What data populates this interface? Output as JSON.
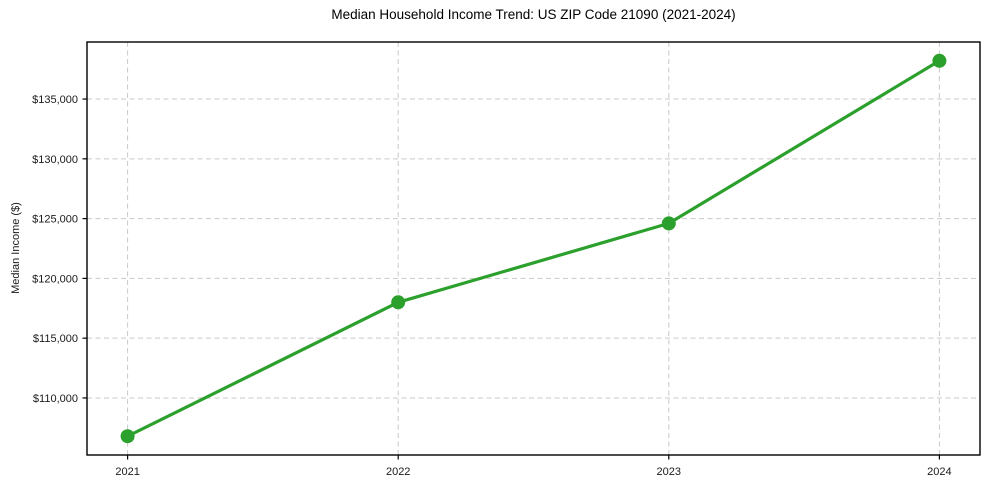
{
  "chart_data": {
    "type": "line",
    "title": "Median Household Income Trend: US ZIP Code 21090 (2021-2024)",
    "xlabel": "",
    "ylabel": "Median Income ($)",
    "x": [
      2021,
      2022,
      2023,
      2024
    ],
    "values": [
      106800,
      118000,
      124600,
      138200
    ],
    "xticks": [
      2021,
      2022,
      2023,
      2024
    ],
    "xtick_labels": [
      "2021",
      "2022",
      "2023",
      "2024"
    ],
    "yticks": [
      110000,
      115000,
      120000,
      125000,
      130000,
      135000
    ],
    "ytick_labels": [
      "$110,000",
      "$115,000",
      "$120,000",
      "$125,000",
      "$130,000",
      "$135,000"
    ],
    "xlim": [
      2020.85,
      2024.15
    ],
    "ylim": [
      105230,
      139770
    ],
    "grid": true,
    "grid_linestyle": "dashed",
    "legend": "none",
    "marker": "o",
    "colors": {
      "line": "#2ca02c",
      "marker": "#2ca02c",
      "grid": "#c9c9c9",
      "axis": "#000000",
      "tick_text": "#1a1a1a",
      "title_text": "#000000",
      "background": "#ffffff"
    }
  }
}
